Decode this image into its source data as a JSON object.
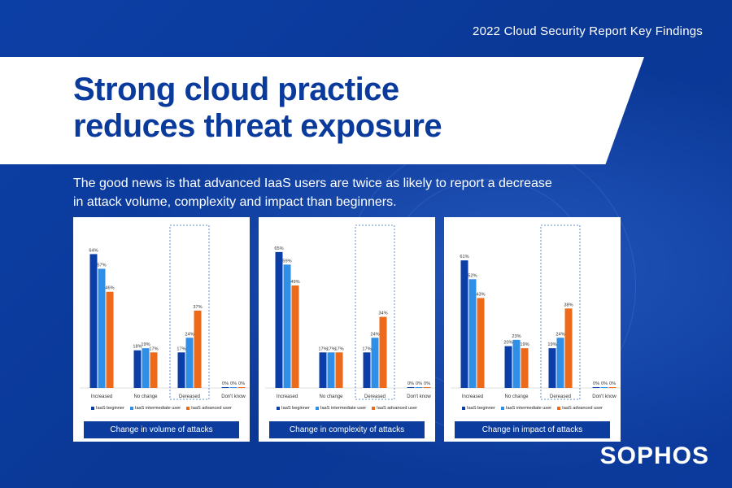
{
  "header": {
    "top_label": "2022 Cloud Security Report Key Findings",
    "headline_line1": "Strong cloud practice",
    "headline_line2": "reduces threat exposure",
    "subtitle_line1": "The good news is that advanced IaaS users are twice as likely to report a decrease",
    "subtitle_line2": "in attack volume, complexity and impact than beginners."
  },
  "brand": "SOPHOS",
  "colors": {
    "background": "#0b3c9e",
    "beginner": "#0c3ea8",
    "intermediate": "#2f8fe6",
    "advanced": "#ec6a1a",
    "highlight_box": "#3a6fc4"
  },
  "chart_data": [
    {
      "type": "bar",
      "title": "Change in volume of attacks",
      "categories": [
        "Increased",
        "No change",
        "Dereased",
        "Don't know"
      ],
      "highlight_category": "Dereased",
      "ylim": [
        0,
        70
      ],
      "series": [
        {
          "name": "IaaS beginner",
          "values": [
            64,
            18,
            17,
            0
          ]
        },
        {
          "name": "IaaS intermediate user",
          "values": [
            57,
            19,
            24,
            0
          ]
        },
        {
          "name": "IaaS advanced user",
          "values": [
            46,
            17,
            37,
            0
          ]
        }
      ]
    },
    {
      "type": "bar",
      "title": "Change in complexity of attacks",
      "categories": [
        "Increased",
        "No change",
        "Dereased",
        "Don't know"
      ],
      "highlight_category": "Dereased",
      "ylim": [
        0,
        70
      ],
      "series": [
        {
          "name": "IaaS beginner",
          "values": [
            65,
            17,
            17,
            0
          ]
        },
        {
          "name": "IaaS intermediate user",
          "values": [
            59,
            17,
            24,
            0
          ]
        },
        {
          "name": "IaaS advanced user",
          "values": [
            49,
            17,
            34,
            0
          ]
        }
      ]
    },
    {
      "type": "bar",
      "title": "Change in impact of attacks",
      "categories": [
        "Increased",
        "No change",
        "Dereased",
        "Don't know"
      ],
      "highlight_category": "Dereased",
      "ylim": [
        0,
        70
      ],
      "series": [
        {
          "name": "IaaS beginner",
          "values": [
            61,
            20,
            19,
            0
          ]
        },
        {
          "name": "IaaS intermediate user",
          "values": [
            52,
            23,
            24,
            0
          ]
        },
        {
          "name": "IaaS advanced user",
          "values": [
            43,
            19,
            38,
            0
          ]
        }
      ]
    }
  ]
}
